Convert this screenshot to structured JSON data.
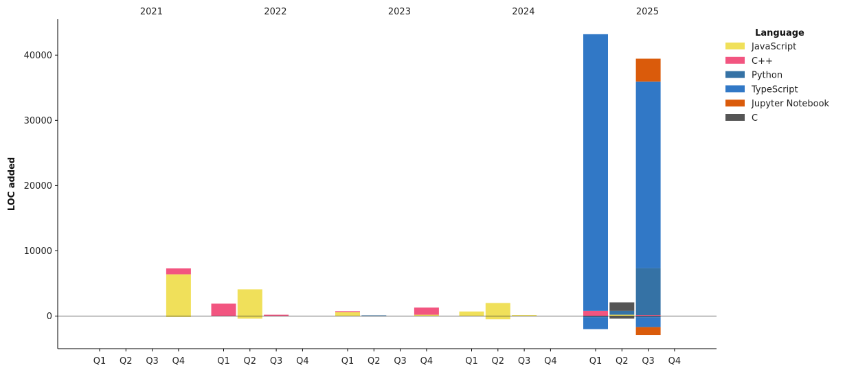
{
  "chart_data": {
    "type": "bar",
    "stacked": true,
    "ylabel": "LOC added",
    "ylim": [
      -5000,
      45500
    ],
    "yticks": [
      0,
      10000,
      20000,
      30000,
      40000
    ],
    "years": [
      "2021",
      "2022",
      "2023",
      "2024",
      "2025"
    ],
    "quarters": [
      "Q1",
      "Q2",
      "Q3",
      "Q4"
    ],
    "grid": false,
    "zero_line": true,
    "legend": {
      "title": "Language",
      "placement": "right-top"
    },
    "series": [
      {
        "name": "JavaScript",
        "color": "#f0e05a",
        "values": [
          [
            0,
            0,
            0,
            6400
          ],
          [
            0,
            4100,
            0,
            0
          ],
          [
            600,
            0,
            0,
            200
          ],
          [
            700,
            2000,
            150,
            0
          ],
          [
            0,
            200,
            0,
            0
          ]
        ],
        "neg_values": [
          [
            0,
            0,
            0,
            -150
          ],
          [
            0,
            -400,
            0,
            0
          ],
          [
            0,
            0,
            0,
            0
          ],
          [
            0,
            -500,
            0,
            0
          ],
          [
            0,
            0,
            0,
            0
          ]
        ]
      },
      {
        "name": "C++",
        "color": "#f25580",
        "values": [
          [
            0,
            0,
            0,
            900
          ],
          [
            1900,
            0,
            200,
            0
          ],
          [
            150,
            0,
            0,
            1100
          ],
          [
            0,
            0,
            0,
            0
          ],
          [
            800,
            0,
            150,
            0
          ]
        ],
        "neg_values": [
          [
            0,
            0,
            0,
            0
          ],
          [
            0,
            0,
            0,
            0
          ],
          [
            0,
            0,
            0,
            0
          ],
          [
            0,
            0,
            0,
            0
          ],
          [
            0,
            0,
            0,
            0
          ]
        ]
      },
      {
        "name": "Python",
        "color": "#3572a5",
        "values": [
          [
            0,
            0,
            0,
            0
          ],
          [
            0,
            0,
            0,
            0
          ],
          [
            0,
            100,
            0,
            0
          ],
          [
            0,
            0,
            0,
            0
          ],
          [
            0,
            600,
            7200,
            0
          ]
        ],
        "neg_values": [
          [
            0,
            0,
            0,
            0
          ],
          [
            0,
            0,
            0,
            0
          ],
          [
            0,
            -50,
            0,
            0
          ],
          [
            0,
            0,
            0,
            0
          ],
          [
            -200,
            0,
            -200,
            0
          ]
        ]
      },
      {
        "name": "TypeScript",
        "color": "#3178c6",
        "values": [
          [
            0,
            0,
            0,
            0
          ],
          [
            0,
            0,
            0,
            0
          ],
          [
            0,
            0,
            0,
            0
          ],
          [
            0,
            0,
            0,
            0
          ],
          [
            42400,
            0,
            28600,
            0
          ]
        ],
        "neg_values": [
          [
            0,
            0,
            0,
            0
          ],
          [
            0,
            0,
            0,
            0
          ],
          [
            0,
            0,
            0,
            0
          ],
          [
            0,
            0,
            0,
            0
          ],
          [
            -1800,
            0,
            -1500,
            0
          ]
        ]
      },
      {
        "name": "Jupyter Notebook",
        "color": "#da5b0b",
        "values": [
          [
            0,
            0,
            0,
            0
          ],
          [
            0,
            0,
            0,
            0
          ],
          [
            0,
            0,
            0,
            0
          ],
          [
            0,
            0,
            0,
            0
          ],
          [
            0,
            0,
            3500,
            0
          ]
        ],
        "neg_values": [
          [
            0,
            0,
            0,
            0
          ],
          [
            0,
            0,
            0,
            0
          ],
          [
            0,
            0,
            0,
            0
          ],
          [
            0,
            0,
            0,
            0
          ],
          [
            0,
            0,
            -1200,
            0
          ]
        ]
      },
      {
        "name": "C",
        "color": "#555555",
        "values": [
          [
            0,
            0,
            0,
            0
          ],
          [
            0,
            0,
            0,
            0
          ],
          [
            0,
            0,
            0,
            0
          ],
          [
            0,
            0,
            0,
            0
          ],
          [
            0,
            1300,
            0,
            0
          ]
        ],
        "neg_values": [
          [
            0,
            0,
            0,
            0
          ],
          [
            0,
            0,
            0,
            0
          ],
          [
            0,
            0,
            0,
            0
          ],
          [
            0,
            0,
            0,
            0
          ],
          [
            0,
            -400,
            0,
            0
          ]
        ]
      }
    ]
  }
}
